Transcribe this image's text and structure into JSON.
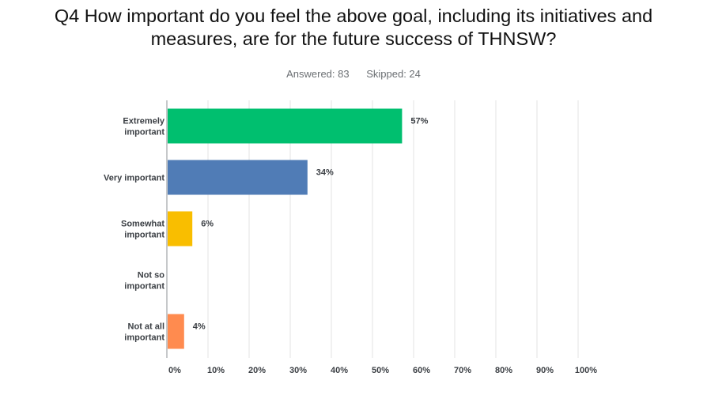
{
  "question": {
    "title_line1": "Q4 How important do you feel the above goal, including its initiatives and",
    "title_line2": "measures, are for the future success of THNSW?",
    "answered": "Answered: 83",
    "skipped": "Skipped: 24"
  },
  "chart_data": {
    "type": "bar",
    "orientation": "horizontal",
    "categories": [
      [
        "Extremely",
        "important"
      ],
      [
        "Very important"
      ],
      [
        "Somewhat",
        "important"
      ],
      [
        "Not so",
        "important"
      ],
      [
        "Not at all",
        "important"
      ]
    ],
    "values": [
      57,
      34,
      6,
      0,
      4
    ],
    "data_labels": [
      "57%",
      "34%",
      "6%",
      "",
      "4%"
    ],
    "colors": [
      "#00bf6f",
      "#507cb6",
      "#f9be00",
      "#6bc8cd",
      "#ff8b4f"
    ],
    "xlim": [
      0,
      100
    ],
    "xticks": [
      0,
      10,
      20,
      30,
      40,
      50,
      60,
      70,
      80,
      90,
      100
    ],
    "xtick_labels": [
      "0%",
      "10%",
      "20%",
      "30%",
      "40%",
      "50%",
      "60%",
      "70%",
      "80%",
      "90%",
      "100%"
    ],
    "grid": true
  }
}
